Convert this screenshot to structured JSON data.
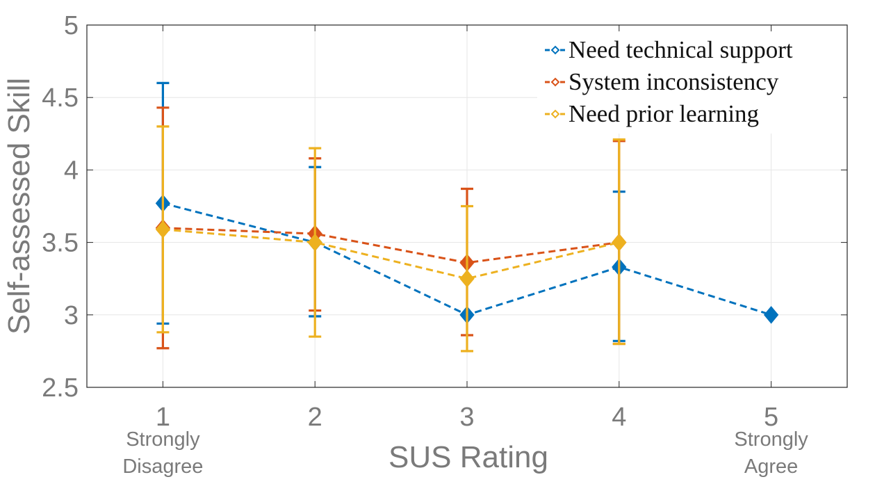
{
  "chart_data": {
    "type": "line",
    "xlabel": "SUS Rating",
    "ylabel": "Self-assessed Skill",
    "xlim": [
      0.5,
      5.5
    ],
    "ylim": [
      2.5,
      5
    ],
    "x_ticks": [
      "1",
      "2",
      "3",
      "4",
      "5"
    ],
    "y_ticks": [
      "2.5",
      "3",
      "3.5",
      "4",
      "4.5",
      "5"
    ],
    "x_annotations": [
      {
        "x": 1,
        "line1": "Strongly",
        "line2": "Disagree"
      },
      {
        "x": 5,
        "line1": "Strongly",
        "line2": "Agree"
      }
    ],
    "grid": true,
    "legend_position": "top-right",
    "error_bars": true,
    "series": [
      {
        "name": "Need technical support",
        "color": "#0072BD",
        "x": [
          1,
          2,
          3,
          4,
          5
        ],
        "y": [
          3.77,
          3.5,
          3.0,
          3.33,
          3.0
        ],
        "err_low": [
          2.94,
          2.99,
          3.0,
          2.82,
          3.0
        ],
        "err_high": [
          4.6,
          4.02,
          3.0,
          3.85,
          3.0
        ]
      },
      {
        "name": "System inconsistency",
        "color": "#D95319",
        "x": [
          1,
          2,
          3,
          4
        ],
        "y": [
          3.6,
          3.56,
          3.36,
          3.5
        ],
        "err_low": [
          2.77,
          3.03,
          2.86,
          2.8
        ],
        "err_high": [
          4.43,
          4.08,
          3.87,
          4.2
        ]
      },
      {
        "name": "Need prior learning",
        "color": "#EDB120",
        "x": [
          1,
          2,
          3,
          4
        ],
        "y": [
          3.59,
          3.5,
          3.25,
          3.5
        ],
        "err_low": [
          2.88,
          2.85,
          2.75,
          2.8
        ],
        "err_high": [
          4.3,
          4.15,
          3.75,
          4.21
        ]
      }
    ]
  }
}
